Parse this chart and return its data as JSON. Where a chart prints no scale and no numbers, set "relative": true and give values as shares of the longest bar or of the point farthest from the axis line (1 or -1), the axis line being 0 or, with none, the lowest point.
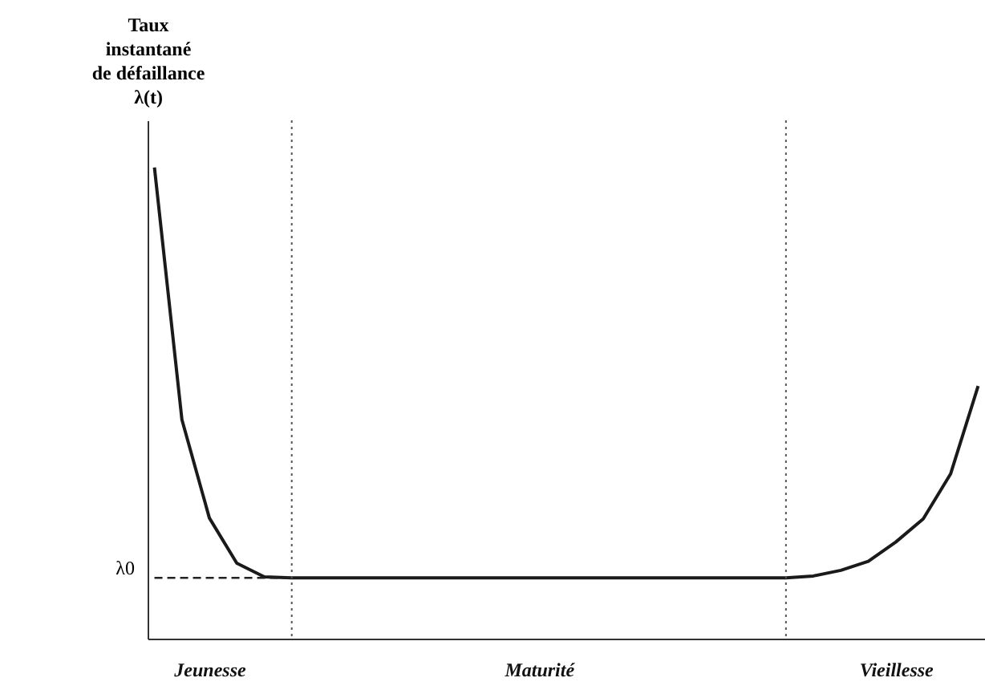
{
  "chart_data": {
    "type": "line",
    "relative": true,
    "ylabel": "Taux\ninstantané\nde défaillance\nλ(t)",
    "marker": "none",
    "line_style": "solid",
    "categories": [
      null,
      null,
      "Jeunesse",
      null,
      null,
      null,
      null,
      null,
      null,
      null,
      null,
      null,
      null,
      null,
      "Maturité",
      null,
      null,
      null,
      null,
      null,
      null,
      null,
      null,
      null,
      null,
      null,
      null,
      "Vieillesse",
      null,
      null,
      null
    ],
    "series": [
      {
        "color": "#1a1a1a",
        "values": [
          1.0,
          0.465,
          0.256,
          0.16,
          0.131,
          0.129,
          0.129,
          0.129,
          0.129,
          0.129,
          0.129,
          0.129,
          0.129,
          0.129,
          0.129,
          0.129,
          0.129,
          0.129,
          0.129,
          0.129,
          0.129,
          0.129,
          0.129,
          0.129,
          0.133,
          0.145,
          0.164,
          0.205,
          0.254,
          0.35,
          0.536
        ]
      }
    ],
    "ref_lines": [
      {
        "axis": "y",
        "value": 0.129,
        "label": "λ0",
        "line_style": "dashed"
      }
    ]
  }
}
